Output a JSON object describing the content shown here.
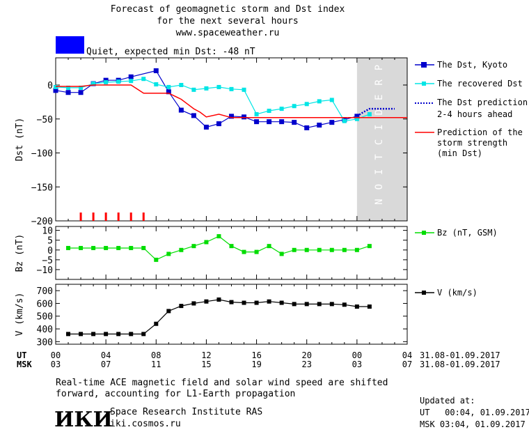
{
  "header": {
    "title_line1": "Forecast of geomagnetic storm and Dst index",
    "title_line2": "for the next several hours",
    "website": "www.spaceweather.ru",
    "status_text": "Quiet, expected min Dst: -48 nT",
    "status_color": "#0000ff"
  },
  "prediction_label": "PREDICTION",
  "legend": {
    "dst_kyoto": "The Dst, Kyoto",
    "recovered_dst": "The recovered Dst",
    "dst_prediction_line1": "The Dst prediction",
    "dst_prediction_line2": "2-4 hours ahead",
    "storm_line1": "Prediction of the",
    "storm_line2": "storm strength",
    "storm_line3": "(min Dst)",
    "bz": "Bz (nT, GSM)",
    "v": "V (km/s)"
  },
  "time_axis": {
    "ut_label": "UT",
    "msk_label": "MSK",
    "ut_ticks": [
      "00",
      "04",
      "08",
      "12",
      "16",
      "20",
      "00",
      "04"
    ],
    "msk_ticks": [
      "03",
      "07",
      "11",
      "15",
      "19",
      "23",
      "03",
      "07"
    ],
    "ut_range": "31.08-01.09.2017",
    "msk_range": "31.08-01.09.2017"
  },
  "footer": {
    "note_line1": "Real-time ACE magnetic field and solar wind speed are shifted",
    "note_line2": "forward, accounting for L1-Earth propagation",
    "logo_text": "ИКИ",
    "institute": "Space Research Institute RAS",
    "institute_url": "iki.cosmos.ru",
    "updated_label": "Updated at:",
    "updated_ut": "UT   00:04, 01.09.2017",
    "updated_msk": "MSK 03:04, 01.09.2017"
  },
  "chart_data": [
    {
      "type": "line",
      "panel": "dst",
      "ylabel": "Dst (nT)",
      "xlim_hours": [
        0,
        28
      ],
      "ylim": [
        -200,
        40
      ],
      "yticks": [
        0,
        -50,
        -100,
        -150,
        -200
      ],
      "prediction_region_hours": [
        24,
        28
      ],
      "series": [
        {
          "name": "The Dst, Kyoto",
          "color": "#0000cc",
          "x": [
            0,
            1,
            2,
            3,
            4,
            5,
            6,
            7,
            8,
            9,
            10,
            11,
            12,
            13,
            14,
            15,
            16,
            17,
            18,
            19,
            20,
            21,
            22,
            23,
            24
          ],
          "y": [
            -8,
            -11,
            -11,
            2,
            7,
            7,
            12,
            null,
            21,
            -10,
            -37,
            -45,
            -62,
            -57,
            -46,
            -47,
            -54,
            -54,
            -54,
            -55,
            -63,
            -59,
            -55,
            -51,
            -46
          ]
        },
        {
          "name": "The recovered Dst",
          "color": "#00e5e5",
          "x": [
            0,
            1,
            2,
            3,
            4,
            5,
            6,
            7,
            8,
            9,
            10,
            11,
            12,
            13,
            14,
            15,
            16,
            17,
            18,
            19,
            20,
            21,
            22,
            23,
            24,
            25
          ],
          "y": [
            -3,
            -4,
            -4,
            2,
            4,
            5,
            6,
            9,
            1,
            -3,
            0,
            -7,
            -5,
            -3,
            -6,
            -7,
            -43,
            -38,
            -35,
            -31,
            -28,
            -24,
            -22,
            -53,
            -50,
            -43
          ]
        },
        {
          "name": "The Dst prediction 2-4 hours ahead",
          "color": "#0000cc",
          "dashed": true,
          "x": [
            24,
            24.5,
            25,
            26,
            27
          ],
          "y": [
            -46,
            -40,
            -35,
            -35,
            -35
          ]
        },
        {
          "name": "Prediction of the storm strength (min Dst)",
          "color": "#ff0000",
          "x": [
            0,
            1,
            2,
            3,
            4,
            5,
            6,
            7,
            8,
            9,
            10,
            10.5,
            11,
            11.5,
            12,
            13,
            14,
            15,
            28
          ],
          "y": [
            -2,
            -2,
            -2,
            0,
            0,
            0,
            0,
            -12,
            -12,
            -12,
            -21,
            -28,
            -35,
            -40,
            -47,
            -43,
            -48,
            -48,
            -48
          ]
        }
      ],
      "red_markers_hours": [
        2,
        3,
        4,
        5,
        6,
        7
      ]
    },
    {
      "type": "line",
      "panel": "bz",
      "ylabel": "Bz (nT)",
      "ylim": [
        -15,
        12
      ],
      "yticks": [
        10,
        5,
        0,
        -5,
        -10
      ],
      "series": [
        {
          "name": "Bz (nT, GSM)",
          "color": "#00dd00",
          "x": [
            1,
            2,
            3,
            4,
            5,
            6,
            7,
            8,
            9,
            10,
            11,
            12,
            13,
            14,
            15,
            16,
            17,
            18,
            19,
            20,
            21,
            22,
            23,
            24,
            25
          ],
          "y": [
            1,
            1,
            1,
            1,
            1,
            1,
            1,
            -5,
            -2,
            0,
            2,
            4,
            7,
            2,
            -1,
            -1,
            2,
            -2,
            0,
            0,
            0,
            0,
            0,
            0,
            2
          ]
        }
      ]
    },
    {
      "type": "line",
      "panel": "v",
      "ylabel": "V (km/s)",
      "ylim": [
        280,
        750
      ],
      "yticks": [
        700,
        600,
        500,
        400,
        300
      ],
      "series": [
        {
          "name": "V (km/s)",
          "color": "#000000",
          "x": [
            1,
            2,
            3,
            4,
            5,
            6,
            7,
            8,
            9,
            10,
            11,
            12,
            13,
            14,
            15,
            16,
            17,
            18,
            19,
            20,
            21,
            22,
            23,
            24,
            25
          ],
          "y": [
            360,
            360,
            360,
            360,
            360,
            360,
            360,
            440,
            540,
            580,
            600,
            615,
            630,
            610,
            605,
            605,
            615,
            605,
            595,
            595,
            595,
            595,
            590,
            575,
            575
          ]
        }
      ]
    }
  ]
}
